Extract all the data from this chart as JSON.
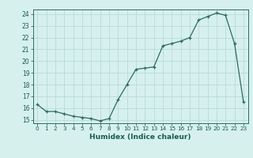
{
  "x": [
    0,
    1,
    2,
    3,
    4,
    5,
    6,
    7,
    8,
    9,
    10,
    11,
    12,
    13,
    14,
    15,
    16,
    17,
    18,
    19,
    20,
    21,
    22,
    23
  ],
  "y": [
    16.3,
    15.7,
    15.7,
    15.5,
    15.3,
    15.2,
    15.1,
    14.9,
    15.1,
    16.7,
    18.0,
    19.3,
    19.4,
    19.5,
    21.3,
    21.5,
    21.7,
    22.0,
    23.5,
    23.8,
    24.1,
    23.9,
    21.5,
    16.5
  ],
  "xlabel": "Humidex (Indice chaleur)",
  "xlim": [
    -0.5,
    23.5
  ],
  "ylim": [
    14.7,
    24.4
  ],
  "yticks": [
    15,
    16,
    17,
    18,
    19,
    20,
    21,
    22,
    23,
    24
  ],
  "xticks": [
    0,
    1,
    2,
    3,
    4,
    5,
    6,
    7,
    8,
    9,
    10,
    11,
    12,
    13,
    14,
    15,
    16,
    17,
    18,
    19,
    20,
    21,
    22,
    23
  ],
  "line_color": "#2d6b5e",
  "marker": "+",
  "bg_color": "#d6f0ee",
  "grid_color": "#b8dbd8",
  "spine_color": "#2d6b5e",
  "tick_color": "#2d6b5e",
  "label_color": "#1a5c50"
}
